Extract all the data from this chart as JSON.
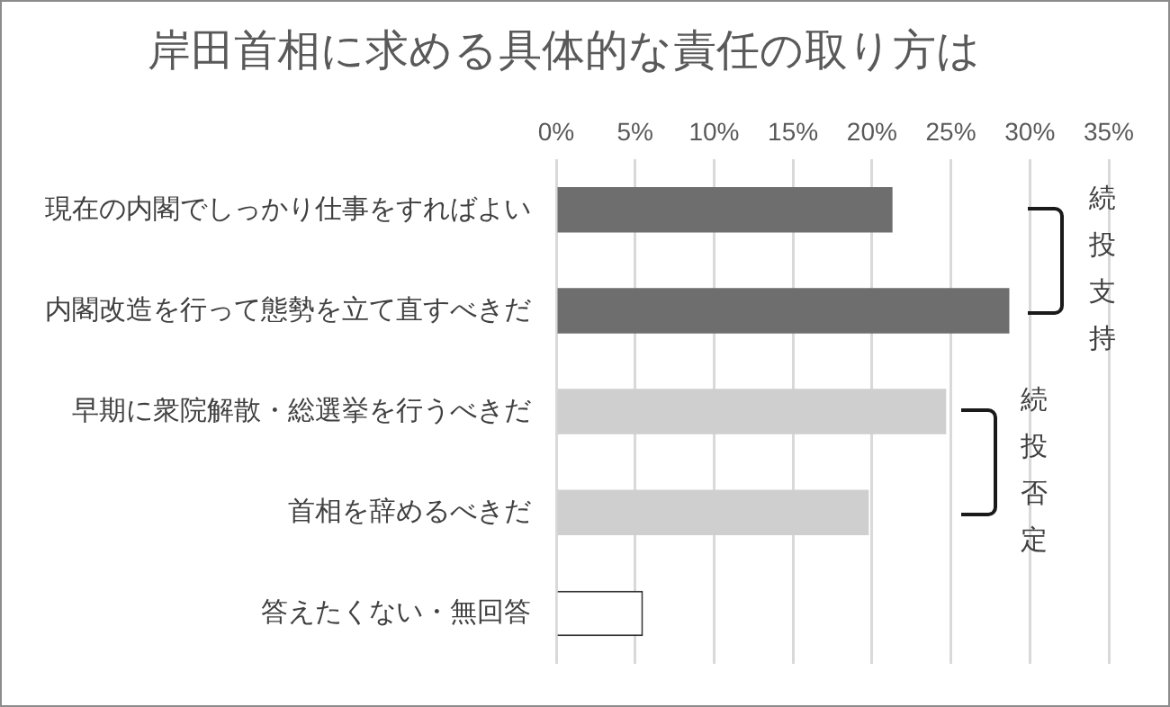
{
  "chart_data": {
    "type": "bar",
    "orientation": "horizontal",
    "title": "岸田首相に求める具体的な責任の取り方は",
    "categories": [
      "現在の内閣でしっかり仕事をすればよい",
      "内閣改造を行って態勢を立て直すべきだ",
      "早期に衆院解散・総選挙を行うべきだ",
      "首相を辞めるべきだ",
      "答えたくない・無回答"
    ],
    "values": [
      21.3,
      28.7,
      24.7,
      19.8,
      5.5
    ],
    "colors": [
      "#6e6e6e",
      "#6e6e6e",
      "#cfcfcf",
      "#cfcfcf",
      "#ffffff"
    ],
    "xlim": [
      0,
      35
    ],
    "xticks": [
      {
        "value": 0,
        "label": "0%"
      },
      {
        "value": 5,
        "label": "5%"
      },
      {
        "value": 10,
        "label": "10%"
      },
      {
        "value": 15,
        "label": "15%"
      },
      {
        "value": 20,
        "label": "20%"
      },
      {
        "value": 25,
        "label": "25%"
      },
      {
        "value": 30,
        "label": "30%"
      },
      {
        "value": 35,
        "label": "35%"
      }
    ],
    "grid": "x",
    "legend": false,
    "annotations": [
      "続投支持",
      "続投否定"
    ]
  }
}
